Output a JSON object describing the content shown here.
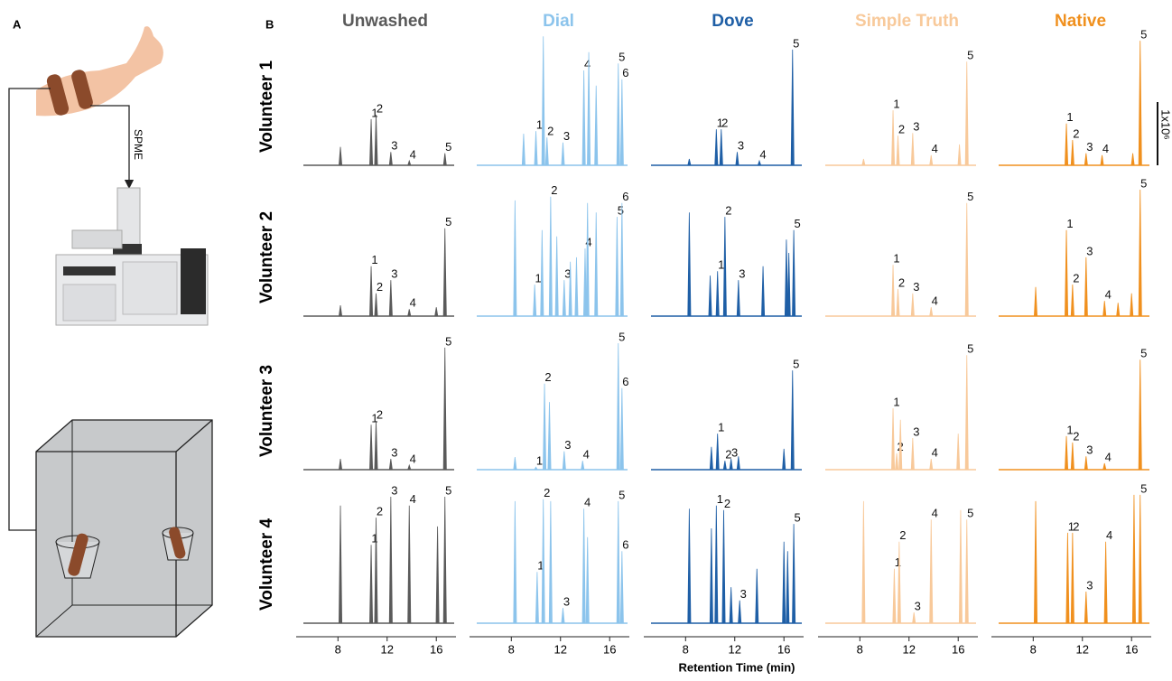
{
  "panel_labels": {
    "a": "A",
    "b": "B"
  },
  "diagram": {
    "arrow_label": "SPME"
  },
  "chart_data": {
    "type": "chromatogram",
    "xlabel": "Retention Time (min)",
    "xlim": [
      4.6,
      17.6
    ],
    "xticks": [
      8,
      12,
      16
    ],
    "ylim": [
      0,
      2.1
    ],
    "scale_bar": {
      "value": 1,
      "label": "1x10⁶"
    },
    "rows": [
      "Volunteer 1",
      "Volunteer 2",
      "Volunteer 3",
      "Volunteer 4"
    ],
    "series": [
      {
        "name": "Unwashed",
        "color": "#5a5a5a",
        "rows": [
          {
            "peaks": [
              {
                "x": 8.2,
                "y": 0.29
              },
              {
                "x": 10.7,
                "y": 0.73,
                "label": "1"
              },
              {
                "x": 11.1,
                "y": 0.8,
                "label": "2"
              },
              {
                "x": 12.3,
                "y": 0.21,
                "label": "3"
              },
              {
                "x": 13.8,
                "y": 0.07,
                "label": "4"
              },
              {
                "x": 16.7,
                "y": 0.19,
                "label": "5"
              }
            ]
          },
          {
            "peaks": [
              {
                "x": 8.2,
                "y": 0.17
              },
              {
                "x": 10.7,
                "y": 0.79,
                "label": "1"
              },
              {
                "x": 11.1,
                "y": 0.36,
                "label": "2"
              },
              {
                "x": 12.3,
                "y": 0.57,
                "label": "3"
              },
              {
                "x": 13.8,
                "y": 0.11,
                "label": "4"
              },
              {
                "x": 16.0,
                "y": 0.14
              },
              {
                "x": 16.7,
                "y": 1.39,
                "label": "5"
              }
            ]
          },
          {
            "peaks": [
              {
                "x": 8.2,
                "y": 0.17
              },
              {
                "x": 10.7,
                "y": 0.71,
                "label": "1"
              },
              {
                "x": 11.1,
                "y": 0.77,
                "label": "2"
              },
              {
                "x": 12.3,
                "y": 0.17,
                "label": "3"
              },
              {
                "x": 13.8,
                "y": 0.07,
                "label": "4"
              },
              {
                "x": 16.7,
                "y": 1.93,
                "label": "5"
              }
            ]
          },
          {
            "peaks": [
              {
                "x": 8.2,
                "y": 1.86
              },
              {
                "x": 10.7,
                "y": 1.24,
                "label": "1"
              },
              {
                "x": 11.1,
                "y": 1.67,
                "label": "2"
              },
              {
                "x": 12.3,
                "y": 2.0,
                "label": "3"
              },
              {
                "x": 13.8,
                "y": 1.86,
                "label": "4"
              },
              {
                "x": 16.1,
                "y": 1.53
              },
              {
                "x": 16.7,
                "y": 2.0,
                "label": "5"
              }
            ]
          }
        ]
      },
      {
        "name": "Dial",
        "color": "#8cc4ec",
        "rows": [
          {
            "peaks": [
              {
                "x": 9.0,
                "y": 0.5
              },
              {
                "x": 10.0,
                "y": 0.54,
                "label": "1"
              },
              {
                "x": 10.6,
                "y": 2.04
              },
              {
                "x": 10.9,
                "y": 0.44,
                "label": "2"
              },
              {
                "x": 12.2,
                "y": 0.36,
                "label": "3"
              },
              {
                "x": 13.9,
                "y": 1.5,
                "label": "4"
              },
              {
                "x": 14.3,
                "y": 1.79
              },
              {
                "x": 14.9,
                "y": 1.26
              },
              {
                "x": 16.7,
                "y": 1.61,
                "label": "5"
              },
              {
                "x": 17.0,
                "y": 1.36,
                "label": "6"
              }
            ]
          },
          {
            "peaks": [
              {
                "x": 8.3,
                "y": 1.83
              },
              {
                "x": 9.9,
                "y": 0.5,
                "label": "1"
              },
              {
                "x": 10.5,
                "y": 1.36
              },
              {
                "x": 11.2,
                "y": 1.89,
                "label": "2"
              },
              {
                "x": 11.7,
                "y": 1.26
              },
              {
                "x": 12.3,
                "y": 0.57,
                "label": "3"
              },
              {
                "x": 12.8,
                "y": 0.86
              },
              {
                "x": 13.3,
                "y": 0.93
              },
              {
                "x": 14.0,
                "y": 1.07,
                "label": "4"
              },
              {
                "x": 14.2,
                "y": 1.79
              },
              {
                "x": 14.9,
                "y": 1.64
              },
              {
                "x": 16.6,
                "y": 1.57,
                "label": "5"
              },
              {
                "x": 17.0,
                "y": 1.79,
                "label": "6"
              }
            ]
          },
          {
            "peaks": [
              {
                "x": 8.3,
                "y": 0.2
              },
              {
                "x": 10.0,
                "y": 0.04,
                "label": "1"
              },
              {
                "x": 10.7,
                "y": 1.36,
                "label": "2"
              },
              {
                "x": 11.1,
                "y": 1.07
              },
              {
                "x": 12.3,
                "y": 0.29,
                "label": "3"
              },
              {
                "x": 13.8,
                "y": 0.14,
                "label": "4"
              },
              {
                "x": 16.7,
                "y": 2.0,
                "label": "5"
              },
              {
                "x": 17.0,
                "y": 1.29,
                "label": "6"
              }
            ]
          },
          {
            "peaks": [
              {
                "x": 8.3,
                "y": 1.93
              },
              {
                "x": 10.1,
                "y": 0.81,
                "label": "1"
              },
              {
                "x": 10.6,
                "y": 1.96,
                "label": "2"
              },
              {
                "x": 11.2,
                "y": 1.93
              },
              {
                "x": 12.2,
                "y": 0.24,
                "label": "3"
              },
              {
                "x": 13.9,
                "y": 1.81,
                "label": "4"
              },
              {
                "x": 14.2,
                "y": 1.36
              },
              {
                "x": 16.7,
                "y": 1.93,
                "label": "5"
              },
              {
                "x": 17.0,
                "y": 1.14,
                "label": "6"
              }
            ]
          }
        ]
      },
      {
        "name": "Dove",
        "color": "#1f5fa6",
        "rows": [
          {
            "peaks": [
              {
                "x": 8.3,
                "y": 0.1
              },
              {
                "x": 10.5,
                "y": 0.57,
                "label": "1"
              },
              {
                "x": 10.9,
                "y": 0.57,
                "label": "2"
              },
              {
                "x": 12.2,
                "y": 0.21,
                "label": "3"
              },
              {
                "x": 14.0,
                "y": 0.07,
                "label": "4"
              },
              {
                "x": 16.7,
                "y": 1.83,
                "label": "5"
              }
            ]
          },
          {
            "peaks": [
              {
                "x": 8.3,
                "y": 1.64
              },
              {
                "x": 10.0,
                "y": 0.64
              },
              {
                "x": 10.6,
                "y": 0.71,
                "label": "1"
              },
              {
                "x": 11.2,
                "y": 1.57,
                "label": "2"
              },
              {
                "x": 12.3,
                "y": 0.57,
                "label": "3"
              },
              {
                "x": 14.3,
                "y": 0.79
              },
              {
                "x": 16.2,
                "y": 1.21
              },
              {
                "x": 16.4,
                "y": 1.0
              },
              {
                "x": 16.8,
                "y": 1.36,
                "label": "5"
              }
            ]
          },
          {
            "peaks": [
              {
                "x": 10.1,
                "y": 0.36
              },
              {
                "x": 10.6,
                "y": 0.57,
                "label": "1"
              },
              {
                "x": 11.2,
                "y": 0.14,
                "label": "2"
              },
              {
                "x": 11.7,
                "y": 0.17,
                "label": "3"
              },
              {
                "x": 12.3,
                "y": 0.21
              },
              {
                "x": 16.0,
                "y": 0.33
              },
              {
                "x": 16.7,
                "y": 1.57,
                "label": "5"
              }
            ]
          },
          {
            "peaks": [
              {
                "x": 8.3,
                "y": 1.81
              },
              {
                "x": 10.1,
                "y": 1.5
              },
              {
                "x": 10.5,
                "y": 1.86,
                "label": "1"
              },
              {
                "x": 11.1,
                "y": 1.79,
                "label": "2"
              },
              {
                "x": 11.7,
                "y": 0.57
              },
              {
                "x": 12.4,
                "y": 0.36,
                "label": "3"
              },
              {
                "x": 13.8,
                "y": 0.86
              },
              {
                "x": 16.0,
                "y": 1.29
              },
              {
                "x": 16.3,
                "y": 1.14
              },
              {
                "x": 16.8,
                "y": 1.57,
                "label": "5"
              }
            ]
          }
        ]
      },
      {
        "name": "Simple Truth",
        "color": "#f8c99a",
        "rows": [
          {
            "peaks": [
              {
                "x": 8.3,
                "y": 0.1
              },
              {
                "x": 10.7,
                "y": 0.87,
                "label": "1"
              },
              {
                "x": 11.1,
                "y": 0.47,
                "label": "2"
              },
              {
                "x": 12.3,
                "y": 0.51,
                "label": "3"
              },
              {
                "x": 13.8,
                "y": 0.16,
                "label": "4"
              },
              {
                "x": 16.1,
                "y": 0.33
              },
              {
                "x": 16.7,
                "y": 1.64,
                "label": "5"
              }
            ]
          },
          {
            "peaks": [
              {
                "x": 10.7,
                "y": 0.81,
                "label": "1"
              },
              {
                "x": 11.1,
                "y": 0.43,
                "label": "2"
              },
              {
                "x": 12.3,
                "y": 0.36,
                "label": "3"
              },
              {
                "x": 13.8,
                "y": 0.14,
                "label": "4"
              },
              {
                "x": 16.7,
                "y": 1.79,
                "label": "5"
              }
            ]
          },
          {
            "peaks": [
              {
                "x": 10.7,
                "y": 0.97,
                "label": "1"
              },
              {
                "x": 11.0,
                "y": 0.26,
                "label": "2"
              },
              {
                "x": 11.3,
                "y": 0.79
              },
              {
                "x": 12.3,
                "y": 0.5,
                "label": "3"
              },
              {
                "x": 13.8,
                "y": 0.17,
                "label": "4"
              },
              {
                "x": 16.0,
                "y": 0.57
              },
              {
                "x": 16.7,
                "y": 1.81,
                "label": "5"
              }
            ]
          },
          {
            "peaks": [
              {
                "x": 8.3,
                "y": 1.93
              },
              {
                "x": 10.8,
                "y": 0.86,
                "label": "1"
              },
              {
                "x": 11.2,
                "y": 1.29,
                "label": "2"
              },
              {
                "x": 12.4,
                "y": 0.17,
                "label": "3"
              },
              {
                "x": 13.8,
                "y": 1.64,
                "label": "4"
              },
              {
                "x": 16.2,
                "y": 1.79
              },
              {
                "x": 16.7,
                "y": 1.64,
                "label": "5"
              }
            ]
          }
        ]
      },
      {
        "name": "Native",
        "color": "#f0901e",
        "rows": [
          {
            "peaks": [
              {
                "x": 10.7,
                "y": 0.66,
                "label": "1"
              },
              {
                "x": 11.2,
                "y": 0.4,
                "label": "2"
              },
              {
                "x": 12.3,
                "y": 0.19,
                "label": "3"
              },
              {
                "x": 13.6,
                "y": 0.16,
                "label": "4"
              },
              {
                "x": 16.1,
                "y": 0.19
              },
              {
                "x": 16.7,
                "y": 1.97,
                "label": "5"
              }
            ]
          },
          {
            "peaks": [
              {
                "x": 8.2,
                "y": 0.46
              },
              {
                "x": 10.7,
                "y": 1.36,
                "label": "1"
              },
              {
                "x": 11.2,
                "y": 0.5,
                "label": "2"
              },
              {
                "x": 12.3,
                "y": 0.93,
                "label": "3"
              },
              {
                "x": 13.8,
                "y": 0.24,
                "label": "4"
              },
              {
                "x": 14.9,
                "y": 0.21
              },
              {
                "x": 16.0,
                "y": 0.36
              },
              {
                "x": 16.7,
                "y": 2.0,
                "label": "5"
              }
            ]
          },
          {
            "peaks": [
              {
                "x": 10.7,
                "y": 0.53,
                "label": "1"
              },
              {
                "x": 11.2,
                "y": 0.43,
                "label": "2"
              },
              {
                "x": 12.3,
                "y": 0.21,
                "label": "3"
              },
              {
                "x": 13.8,
                "y": 0.1,
                "label": "4"
              },
              {
                "x": 16.7,
                "y": 1.74,
                "label": "5"
              }
            ]
          },
          {
            "peaks": [
              {
                "x": 8.2,
                "y": 1.93
              },
              {
                "x": 10.8,
                "y": 1.43,
                "label": "1"
              },
              {
                "x": 11.2,
                "y": 1.43,
                "label": "2"
              },
              {
                "x": 12.3,
                "y": 0.5,
                "label": "3"
              },
              {
                "x": 13.9,
                "y": 1.29,
                "label": "4"
              },
              {
                "x": 16.2,
                "y": 2.03
              },
              {
                "x": 16.7,
                "y": 2.03,
                "label": "5"
              }
            ]
          }
        ]
      }
    ]
  }
}
